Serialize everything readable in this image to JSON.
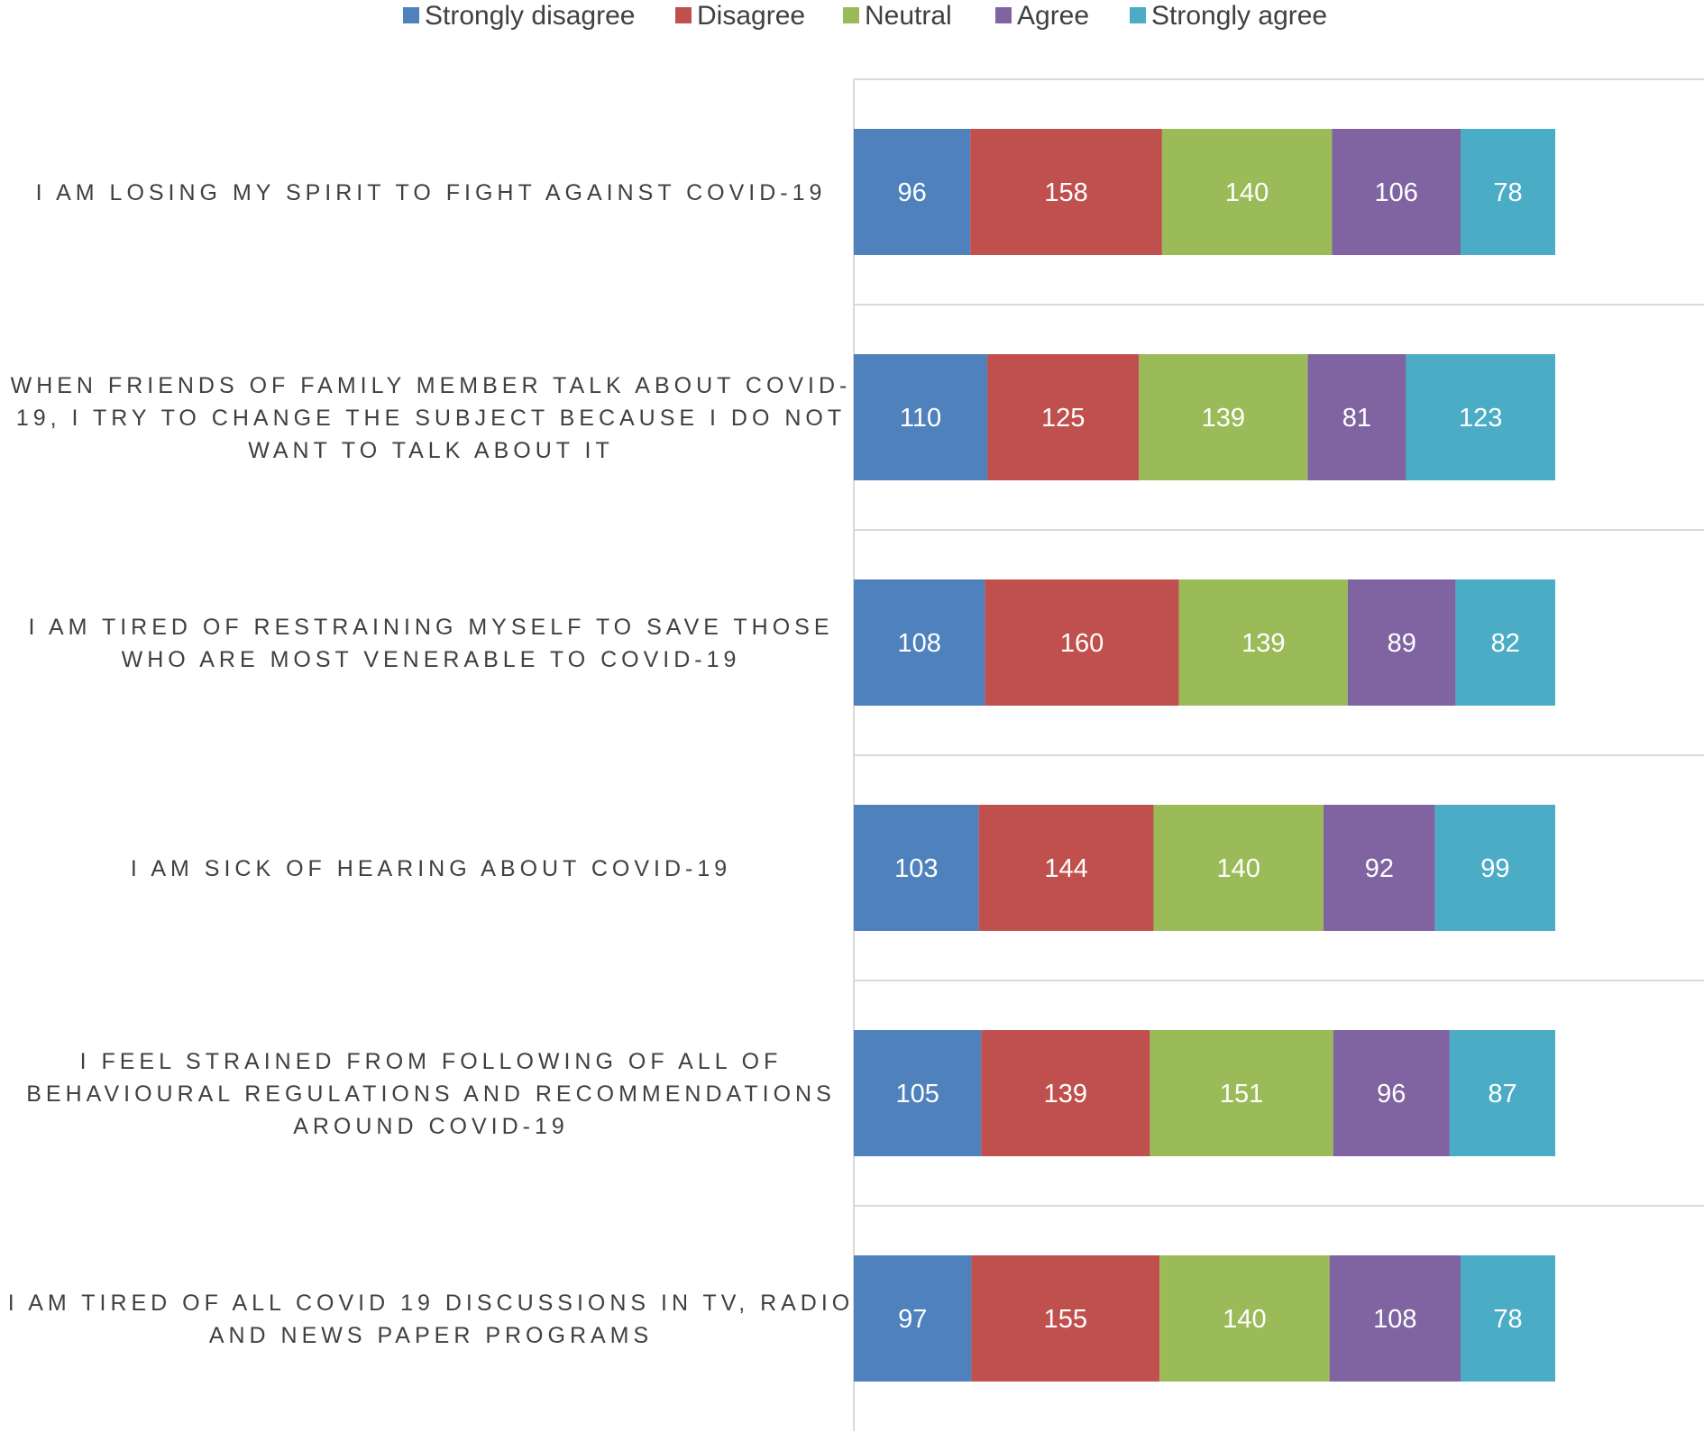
{
  "chart_data": {
    "type": "bar",
    "orientation": "horizontal",
    "stacked": true,
    "legend_position": "top",
    "grid": "horizontal separators between categories",
    "categories": [
      [
        "I AM LOSING MY SPIRIT TO FIGHT AGAINST COVID-19"
      ],
      [
        "WHEN FRIENDS OF FAMILY MEMBER TALK ABOUT COVID-",
        "19, I TRY TO CHANGE THE SUBJECT BECAUSE I DO NOT",
        "WANT TO TALK ABOUT IT"
      ],
      [
        "I AM TIRED OF RESTRAINING MYSELF TO SAVE THOSE",
        "WHO ARE MOST VENERABLE TO COVID-19"
      ],
      [
        "I AM SICK OF HEARING ABOUT COVID-19"
      ],
      [
        "I FEEL STRAINED FROM FOLLOWING OF ALL OF",
        "BEHAVIOURAL REGULATIONS AND RECOMMENDATIONS",
        "AROUND COVID-19"
      ],
      [
        "I AM TIRED OF ALL  COVID 19 DISCUSSIONS IN TV, RADIO",
        "AND NEWS PAPER PROGRAMS"
      ]
    ],
    "series": [
      {
        "name": "Strongly disagree",
        "color": "#4F81BD",
        "values": [
          96,
          110,
          108,
          103,
          105,
          97
        ]
      },
      {
        "name": "Disagree",
        "color": "#C0504D",
        "values": [
          158,
          125,
          160,
          144,
          139,
          155
        ]
      },
      {
        "name": "Neutral",
        "color": "#9BBB59",
        "values": [
          140,
          139,
          139,
          140,
          151,
          140
        ]
      },
      {
        "name": "Agree",
        "color": "#8064A2",
        "values": [
          106,
          81,
          89,
          92,
          96,
          108
        ]
      },
      {
        "name": "Strongly agree",
        "color": "#4BACC6",
        "values": [
          78,
          123,
          82,
          99,
          87,
          78
        ]
      }
    ],
    "xlim": [
      0,
      578
    ],
    "title": "",
    "xlabel": "",
    "ylabel": ""
  }
}
